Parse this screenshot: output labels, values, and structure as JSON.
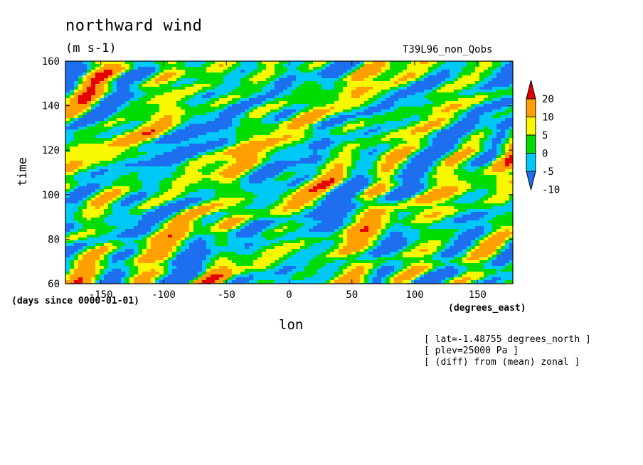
{
  "chart_data": {
    "type": "heatmap",
    "title": "northward wind",
    "units": "(m s-1)",
    "run_name": "T39L96_non_Qobs",
    "xlabel": "lon",
    "ylabel": "time",
    "x_units_label": "(degrees_east)",
    "y_units_label": "(days since 0000-01-01)",
    "xlim": [
      -178.125,
      178.125
    ],
    "ylim": [
      60,
      160
    ],
    "x_ticks": [
      -150,
      -100,
      -50,
      0,
      50,
      100,
      150
    ],
    "y_ticks": [
      60,
      80,
      100,
      120,
      140,
      160
    ],
    "grid": false,
    "colorbar": {
      "placement": "right",
      "levels": [
        -10,
        -5,
        0,
        5,
        10,
        20
      ],
      "level_labels": [
        "-10",
        "-5",
        "0",
        "5",
        "10",
        "20"
      ],
      "colors": [
        "#1e6ef0",
        "#00c8f8",
        "#00dc00",
        "#f8f800",
        "#ffa000",
        "#e60000"
      ],
      "extend": "both"
    },
    "annotations": [
      "[ lat=-1.48755 degrees_north ]",
      "[ plev=25000 Pa ]",
      "[ (diff) from (mean) zonal ]"
    ]
  }
}
